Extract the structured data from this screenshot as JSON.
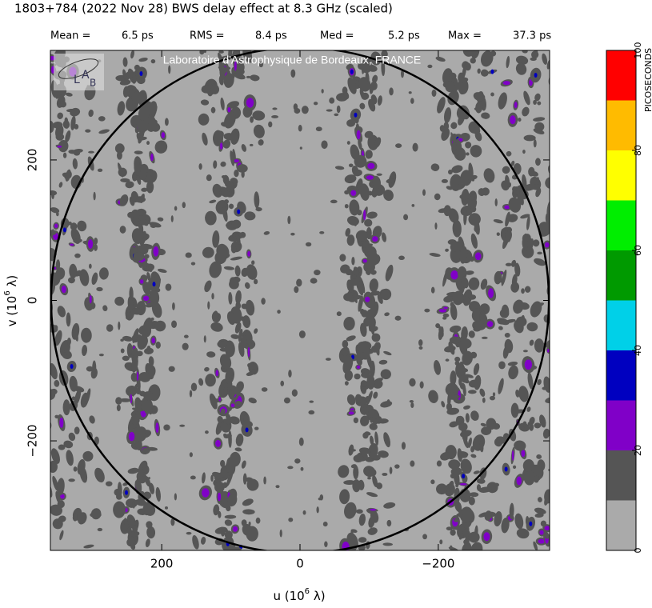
{
  "chart_data": {
    "type": "contour-map",
    "title": "1803+784  (2022 Nov 28)   BWS delay effect at  8.3 GHz (scaled)",
    "stats": [
      [
        "Mean =",
        "6.5 ps"
      ],
      [
        "RMS =",
        "8.4 ps"
      ],
      [
        "Med =",
        "5.2 ps"
      ],
      [
        "Max =",
        "37.3 ps"
      ]
    ],
    "watermark": "Laboratoire d'Astrophysique de Bordeaux, FRANCE",
    "logo": [
      "L",
      "A",
      "B"
    ],
    "xlabel": [
      "u  (10",
      "6",
      " λ)"
    ],
    "ylabel": [
      "v  (10",
      "6",
      " λ)"
    ],
    "xlim": [
      361,
      -361
    ],
    "ylim": [
      -356,
      356
    ],
    "xticks": [
      200,
      0,
      {
        "value": -200,
        "label": "−200"
      }
    ],
    "yticks": [
      {
        "value": -200,
        "label": "−200"
      },
      0,
      200
    ],
    "circle_radius": 360,
    "colorbar": {
      "label": "PICOSECONDS",
      "levels": [
        0,
        10,
        20,
        30,
        40,
        50,
        60,
        70,
        80,
        90,
        100
      ],
      "colors": [
        "#aaaaaa",
        "#555555",
        "#8000c8",
        "#0000c0",
        "#00d0e8",
        "#009a00",
        "#00ee00",
        "#ffff00",
        "#ffbb00",
        "#ff0000"
      ],
      "ticks": [
        0,
        20,
        40,
        60,
        80,
        100
      ]
    }
  }
}
